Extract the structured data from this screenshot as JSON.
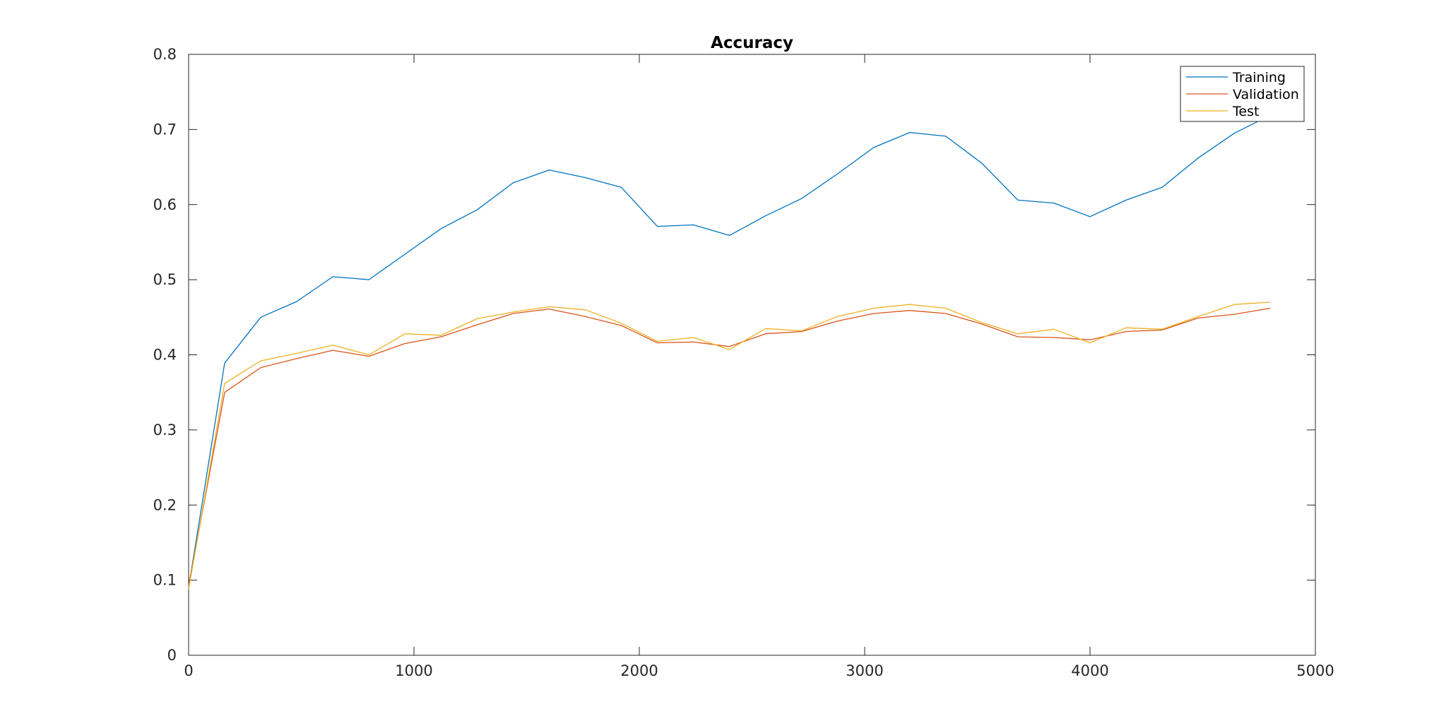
{
  "chart_data": {
    "type": "line",
    "title": "Accuracy",
    "xlabel": "",
    "ylabel": "",
    "xlim": [
      0,
      5000
    ],
    "ylim": [
      0,
      0.8
    ],
    "xticks": [
      0,
      1000,
      2000,
      3000,
      4000,
      5000
    ],
    "xtick_labels": [
      "0",
      "1000",
      "2000",
      "3000",
      "4000",
      "5000"
    ],
    "yticks": [
      0,
      0.1,
      0.2,
      0.3,
      0.4,
      0.5,
      0.6,
      0.7,
      0.8
    ],
    "ytick_labels": [
      "0",
      "0.1",
      "0.2",
      "0.3",
      "0.4",
      "0.5",
      "0.6",
      "0.7",
      "0.8"
    ],
    "grid": false,
    "legend_position": "top-right",
    "x": [
      0,
      160,
      320,
      480,
      640,
      800,
      960,
      1120,
      1280,
      1440,
      1600,
      1760,
      1920,
      2080,
      2240,
      2400,
      2560,
      2720,
      2880,
      3040,
      3200,
      3360,
      3520,
      3680,
      3840,
      4000,
      4160,
      4320,
      4480,
      4640,
      4800
    ],
    "series": [
      {
        "name": "Training",
        "color": "#0072bd",
        "values": [
          0.09,
          0.389,
          0.45,
          0.471,
          0.504,
          0.5,
          0.534,
          0.568,
          0.593,
          0.629,
          0.646,
          0.636,
          0.623,
          0.571,
          0.573,
          0.559,
          0.585,
          0.608,
          0.641,
          0.676,
          0.696,
          0.691,
          0.655,
          0.606,
          0.602,
          0.584,
          0.606,
          0.623,
          0.662,
          0.695,
          0.719
        ]
      },
      {
        "name": "Validation",
        "color": "#d95319",
        "values": [
          0.092,
          0.35,
          0.383,
          0.395,
          0.406,
          0.398,
          0.415,
          0.424,
          0.44,
          0.455,
          0.461,
          0.451,
          0.439,
          0.416,
          0.417,
          0.411,
          0.428,
          0.431,
          0.445,
          0.455,
          0.459,
          0.455,
          0.441,
          0.424,
          0.423,
          0.42,
          0.431,
          0.433,
          0.449,
          0.454,
          0.462
        ]
      },
      {
        "name": "Test",
        "color": "#edb120",
        "values": [
          0.088,
          0.362,
          0.392,
          0.402,
          0.413,
          0.4,
          0.428,
          0.426,
          0.448,
          0.457,
          0.464,
          0.46,
          0.442,
          0.418,
          0.423,
          0.407,
          0.435,
          0.432,
          0.451,
          0.462,
          0.467,
          0.462,
          0.443,
          0.428,
          0.434,
          0.416,
          0.436,
          0.434,
          0.451,
          0.467,
          0.47
        ]
      }
    ]
  }
}
